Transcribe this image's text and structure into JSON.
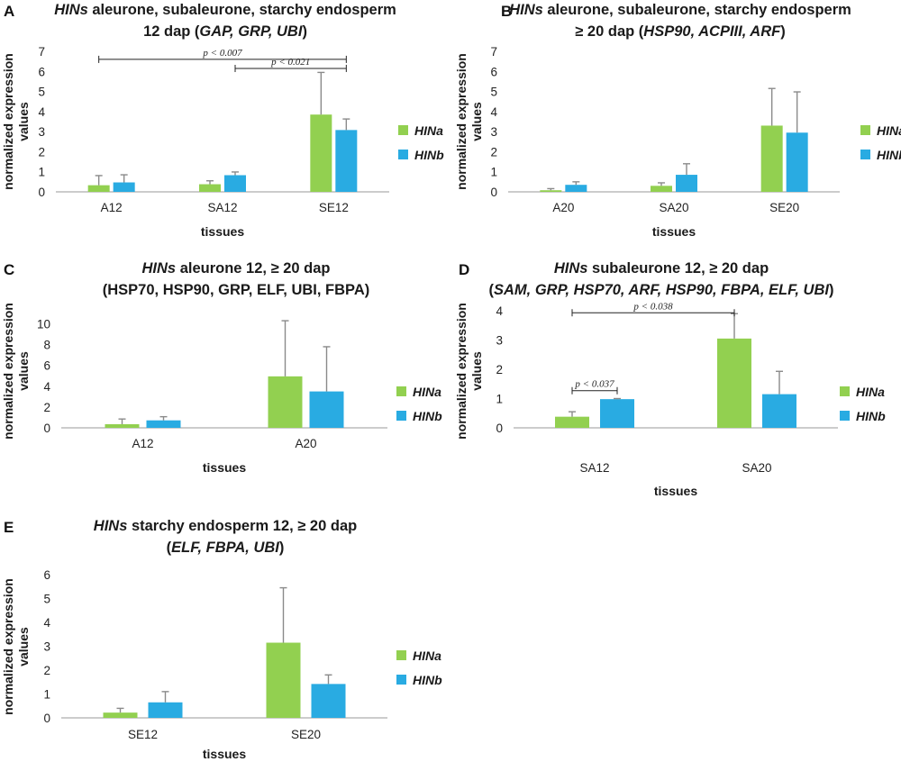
{
  "chart_data": [
    {
      "panel": "A",
      "type": "bar",
      "title_parts": [
        [
          {
            "t": "HINs",
            "i": true
          },
          {
            "t": " aleurone, subaleurone, starchy endosperm",
            "i": false
          }
        ],
        [
          {
            "t": "12 dap (",
            "i": false
          },
          {
            "t": "GAP, GRP, UBI",
            "i": true
          },
          {
            "t": ")",
            "i": false
          }
        ]
      ],
      "ylabel": [
        "normalized expression",
        "values"
      ],
      "xlabel": "tissues",
      "ylim": [
        0,
        7
      ],
      "yticks": [
        0,
        1,
        2,
        3,
        4,
        5,
        6,
        7
      ],
      "categories": [
        "A12",
        "SA12",
        "SE12"
      ],
      "series": [
        {
          "name": "HINa",
          "color": "#92d050",
          "values": [
            0.33,
            0.38,
            3.85
          ],
          "errors": [
            0.48,
            0.17,
            2.1
          ]
        },
        {
          "name": "HINb",
          "color": "#29abe2",
          "values": [
            0.47,
            0.83,
            3.08
          ],
          "errors": [
            0.38,
            0.16,
            0.55
          ]
        }
      ],
      "significance": [
        {
          "label": "p < 0.007",
          "from": [
            0,
            0
          ],
          "to": [
            2,
            1
          ],
          "level": 6.6
        },
        {
          "label": "p < 0.021",
          "from": [
            1,
            1
          ],
          "to": [
            2,
            1
          ],
          "level": 6.15
        }
      ]
    },
    {
      "panel": "B",
      "type": "bar",
      "title_parts": [
        [
          {
            "t": "HINs",
            "i": true
          },
          {
            "t": " aleurone, subaleurone, starchy endosperm",
            "i": false
          }
        ],
        [
          {
            "t": "≥ 20 dap (",
            "i": false
          },
          {
            "t": "HSP90, ACPIII, ARF",
            "i": true
          },
          {
            "t": ")",
            "i": false
          }
        ]
      ],
      "ylabel": [
        "normalized expression",
        "values"
      ],
      "xlabel": "tissues",
      "ylim": [
        0,
        7
      ],
      "yticks": [
        0,
        1,
        2,
        3,
        4,
        5,
        6,
        7
      ],
      "categories": [
        "A20",
        "SA20",
        "SE20"
      ],
      "series": [
        {
          "name": "HINa",
          "color": "#92d050",
          "values": [
            0.08,
            0.3,
            3.3
          ],
          "errors": [
            0.08,
            0.15,
            1.85
          ]
        },
        {
          "name": "HINb",
          "color": "#29abe2",
          "values": [
            0.35,
            0.85,
            2.95
          ],
          "errors": [
            0.15,
            0.55,
            2.03
          ]
        }
      ],
      "significance": []
    },
    {
      "panel": "C",
      "type": "bar",
      "title_parts": [
        [
          {
            "t": "HINs",
            "i": true
          },
          {
            "t": " aleurone 12, ≥ 20 dap",
            "i": false
          }
        ],
        [
          {
            "t": "(HSP70, HSP90, GRP, ELF, UBI, FBPA)",
            "i": false
          }
        ]
      ],
      "ylabel": [
        "normalized expression",
        "values"
      ],
      "xlabel": "tissues",
      "ylim": [
        0,
        11
      ],
      "yticks": [
        0,
        2,
        4,
        6,
        8,
        10
      ],
      "categories": [
        "A12",
        "A20"
      ],
      "series": [
        {
          "name": "HINa",
          "color": "#92d050",
          "values": [
            0.35,
            4.95
          ],
          "errors": [
            0.5,
            5.35
          ]
        },
        {
          "name": "HINb",
          "color": "#29abe2",
          "values": [
            0.72,
            3.5
          ],
          "errors": [
            0.35,
            4.3
          ]
        }
      ],
      "significance": []
    },
    {
      "panel": "D",
      "type": "bar",
      "title_parts": [
        [
          {
            "t": "HINs",
            "i": true
          },
          {
            "t": " subaleurone 12, ≥ 20 dap",
            "i": false
          }
        ],
        [
          {
            "t": "(",
            "i": false
          },
          {
            "t": "SAM, GRP, HSP70, ARF, HSP90, FBPA, ELF, UBI",
            "i": true
          },
          {
            "t": ")",
            "i": false
          }
        ]
      ],
      "ylabel": [
        "normalized expression",
        "values"
      ],
      "xlabel": "tissues",
      "ylim": [
        0,
        4
      ],
      "yticks": [
        0,
        1,
        2,
        3,
        4
      ],
      "categories": [
        "SA12",
        "SA20"
      ],
      "series": [
        {
          "name": "HINa",
          "color": "#92d050",
          "values": [
            0.38,
            3.05
          ],
          "errors": [
            0.17,
            0.85
          ]
        },
        {
          "name": "HINb",
          "color": "#29abe2",
          "values": [
            0.98,
            1.15
          ],
          "errors": [
            0.02,
            0.78
          ]
        }
      ],
      "significance": [
        {
          "label": "p < 0.038",
          "from": [
            0,
            0
          ],
          "to": [
            1,
            0
          ],
          "level": 3.93
        },
        {
          "label": "p < 0.037",
          "from": [
            0,
            0
          ],
          "to": [
            0,
            1
          ],
          "level": 1.27
        }
      ]
    },
    {
      "panel": "E",
      "type": "bar",
      "title_parts": [
        [
          {
            "t": "HINs",
            "i": true
          },
          {
            "t": " starchy endosperm 12, ≥ 20 dap",
            "i": false
          }
        ],
        [
          {
            "t": "(",
            "i": false
          },
          {
            "t": "ELF, FBPA, UBI",
            "i": true
          },
          {
            "t": ")",
            "i": false
          }
        ]
      ],
      "ylabel": [
        "normalized expression",
        "values"
      ],
      "xlabel": "tissues",
      "ylim": [
        0,
        6
      ],
      "yticks": [
        0,
        1,
        2,
        3,
        4,
        5,
        6
      ],
      "categories": [
        "SE12",
        "SE20"
      ],
      "series": [
        {
          "name": "HINa",
          "color": "#92d050",
          "values": [
            0.22,
            3.15
          ],
          "errors": [
            0.18,
            2.3
          ]
        },
        {
          "name": "HINb",
          "color": "#29abe2",
          "values": [
            0.65,
            1.42
          ],
          "errors": [
            0.45,
            0.38
          ]
        }
      ],
      "significance": []
    }
  ]
}
